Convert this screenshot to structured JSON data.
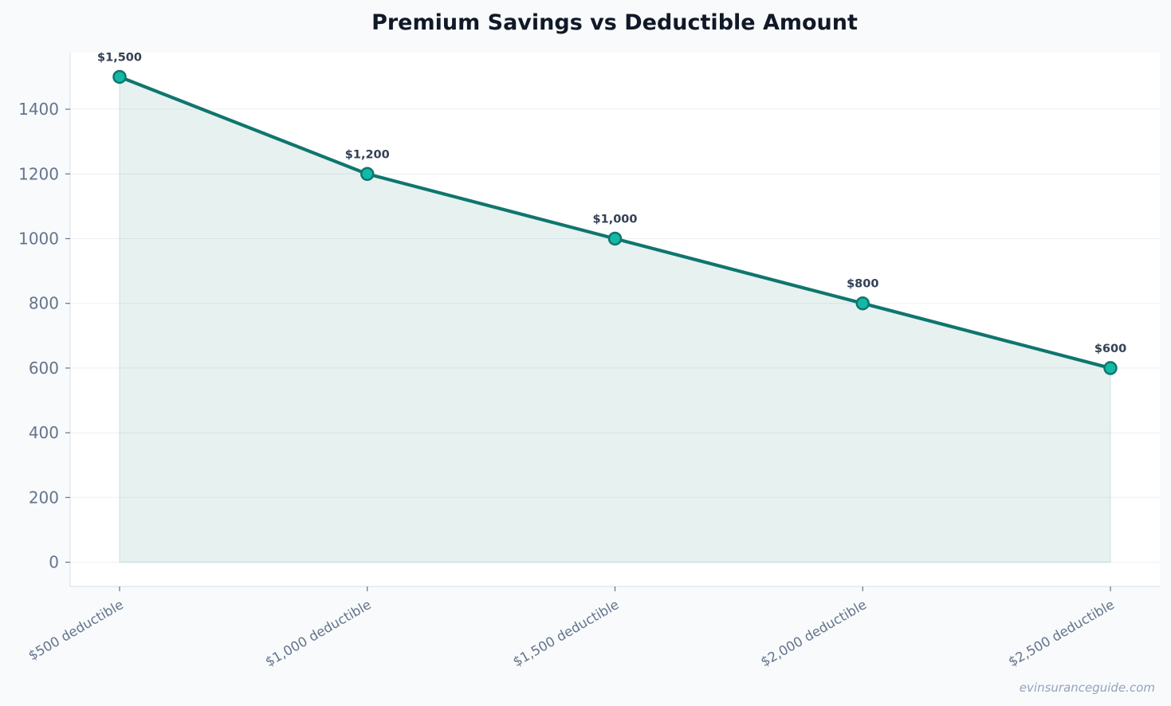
{
  "chart_data": {
    "type": "area",
    "title": "Premium Savings vs Deductible Amount",
    "xlabel": "",
    "ylabel": "",
    "categories": [
      "$500 deductible",
      "$1,000 deductible",
      "$1,500 deductible",
      "$2,000 deductible",
      "$2,500 deductible"
    ],
    "values": [
      1500,
      1200,
      1000,
      800,
      600
    ],
    "data_labels": [
      "$1,500",
      "$1,200",
      "$1,000",
      "$800",
      "$600"
    ],
    "ylim": [
      -75,
      1575
    ],
    "yticks": [
      0,
      200,
      400,
      600,
      800,
      1000,
      1200,
      1400
    ],
    "grid": true,
    "legend": "none",
    "colors": {
      "line": "#0f766e",
      "marker_fill": "#14b8a6",
      "area_fill": "#0f766e",
      "grid": "#eef2f5",
      "plot_background": "#ffffff",
      "page_background": "#f8fafc"
    }
  },
  "watermark": "evinsuranceguide.com"
}
